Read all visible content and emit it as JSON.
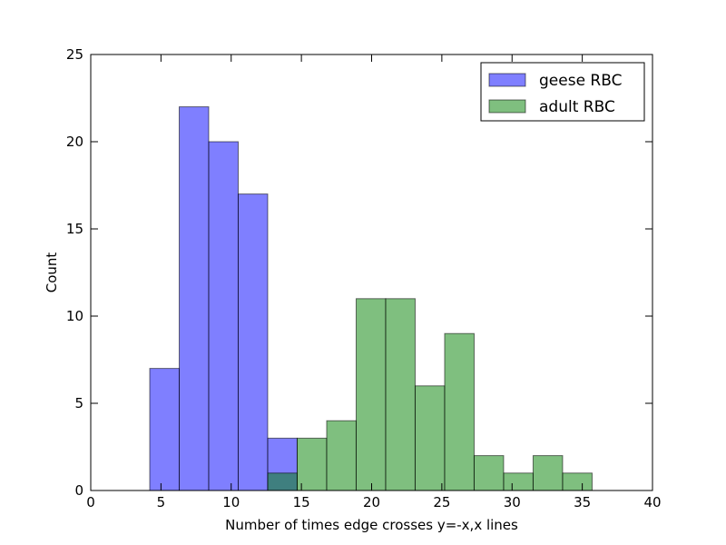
{
  "chart_data": {
    "type": "bar",
    "subtype": "histogram",
    "title": "",
    "xlabel": "Number of times edge crosses y=-x,x lines",
    "ylabel": "Count",
    "xlim": [
      0,
      40
    ],
    "ylim": [
      0,
      25
    ],
    "xticks": [
      0,
      5,
      10,
      15,
      20,
      25,
      30,
      35,
      40
    ],
    "yticks": [
      0,
      5,
      10,
      15,
      20,
      25
    ],
    "grid": false,
    "legend_position": "top-right",
    "series": [
      {
        "name": "geese RBC",
        "color": "#0000ff",
        "alpha": 0.5,
        "bin_edges": [
          0,
          2.1,
          4.2,
          6.3,
          8.4,
          10.5,
          12.6,
          14.7
        ],
        "values": [
          0,
          0,
          7,
          22,
          20,
          17,
          3
        ]
      },
      {
        "name": "adult RBC",
        "color": "#008000",
        "alpha": 0.5,
        "bin_edges": [
          12.6,
          14.7,
          16.8,
          18.9,
          21.0,
          23.1,
          25.2,
          27.3,
          29.4,
          31.5,
          33.6,
          35.7
        ],
        "values": [
          1,
          3,
          4,
          11,
          11,
          6,
          9,
          2,
          1,
          2,
          1
        ]
      }
    ]
  }
}
